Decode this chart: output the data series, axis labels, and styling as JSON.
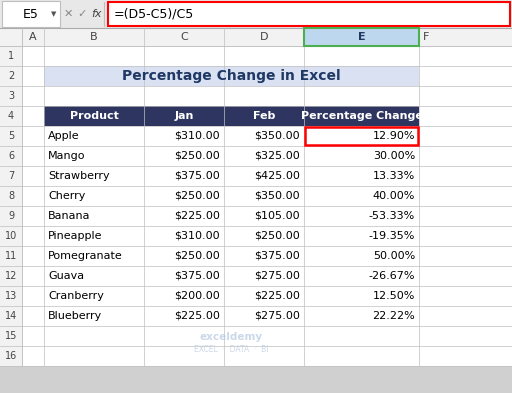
{
  "title": "Percentage Change in Excel",
  "formula_bar_text": "=(D5-C5)/C5",
  "cell_ref": "E5",
  "header_cols": [
    "Product",
    "Jan",
    "Feb",
    "Percentage Change"
  ],
  "rows": [
    [
      "Apple",
      "$310.00",
      "$350.00",
      "12.90%"
    ],
    [
      "Mango",
      "$250.00",
      "$325.00",
      "30.00%"
    ],
    [
      "Strawberry",
      "$375.00",
      "$425.00",
      "13.33%"
    ],
    [
      "Cherry",
      "$250.00",
      "$350.00",
      "40.00%"
    ],
    [
      "Banana",
      "$225.00",
      "$105.00",
      "-53.33%"
    ],
    [
      "Pineapple",
      "$310.00",
      "$250.00",
      "-19.35%"
    ],
    [
      "Pomegranate",
      "$250.00",
      "$375.00",
      "50.00%"
    ],
    [
      "Guava",
      "$375.00",
      "$275.00",
      "-26.67%"
    ],
    [
      "Cranberry",
      "$200.00",
      "$225.00",
      "12.50%"
    ],
    [
      "Blueberry",
      "$225.00",
      "$275.00",
      "22.22%"
    ]
  ],
  "col_letters": [
    "A",
    "B",
    "C",
    "D",
    "E",
    "F"
  ],
  "row_numbers": [
    "1",
    "2",
    "3",
    "4",
    "5",
    "6",
    "7",
    "8",
    "9",
    "10",
    "11",
    "12",
    "13",
    "14",
    "15",
    "16"
  ],
  "header_bg": "#2E3560",
  "header_fg": "#FFFFFF",
  "title_bg": "#D9E1F2",
  "title_fg": "#1F3864",
  "grid_color": "#BFBFBF",
  "formula_bar_border": "#FF0000",
  "selected_cell_border": "#FF0000",
  "col_header_bg": "#F2F2F2",
  "row_header_bg": "#F2F2F2",
  "col_header_selected_bg": "#BDD7EE",
  "background": "#FFFFFF",
  "fig_bg": "#D0D0D0",
  "watermark_text1": "exceldemy",
  "watermark_text2": "EXCEL  ·  DATA  ·  BI",
  "watermark_color": "#B0C4DE"
}
